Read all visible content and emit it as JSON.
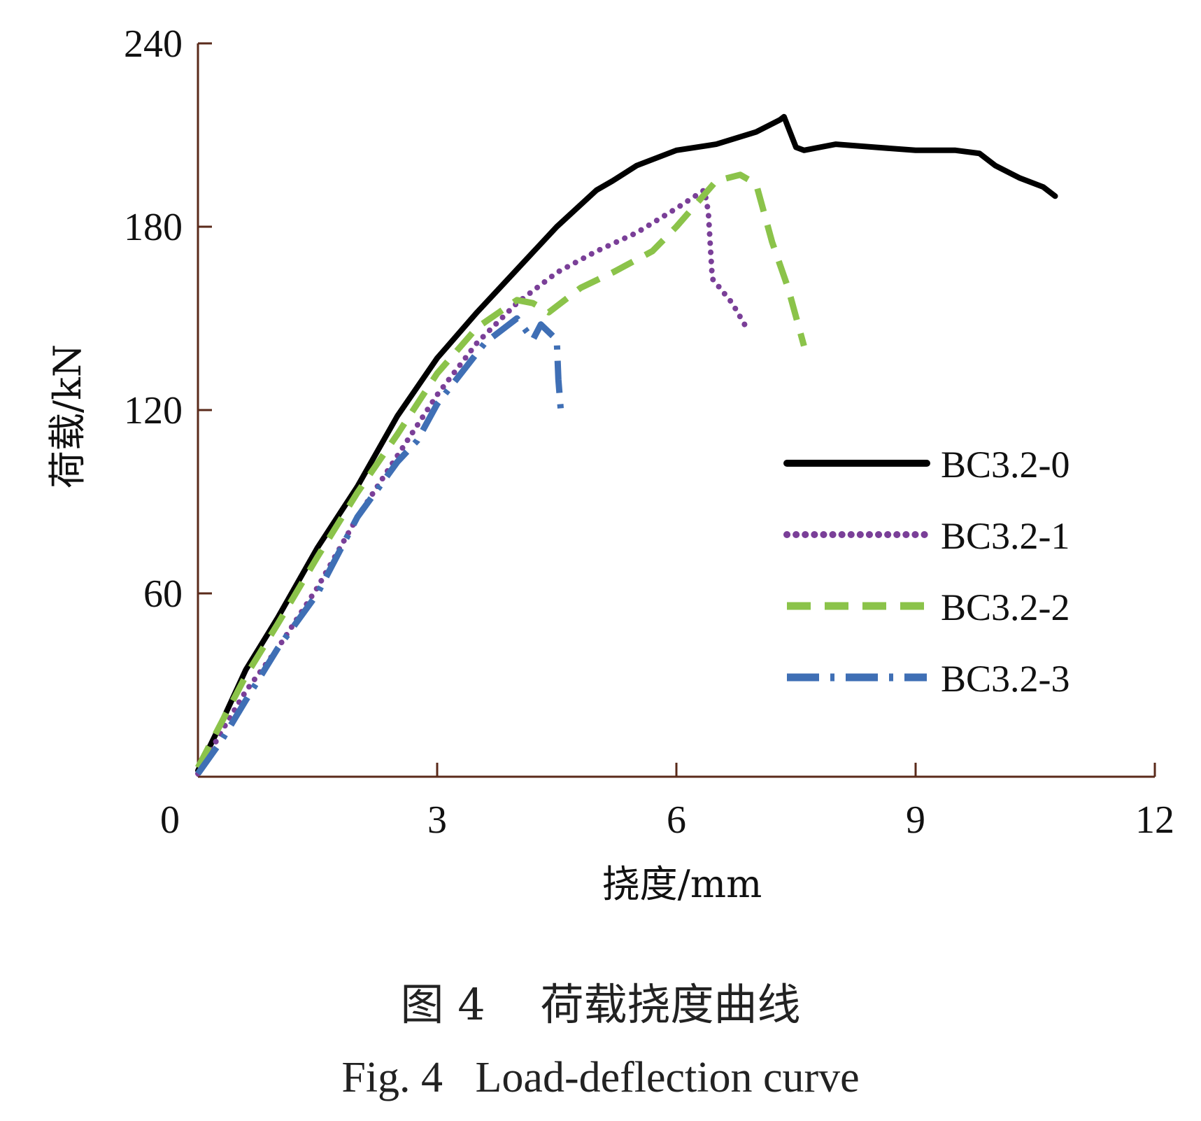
{
  "chart_data": {
    "type": "line",
    "xlabel": "挠度/mm",
    "ylabel": "荷载/kN",
    "xlim": [
      0,
      12
    ],
    "ylim": [
      0,
      240
    ],
    "x_ticks": [
      0,
      3,
      6,
      9,
      12
    ],
    "y_ticks": [
      60,
      120,
      180,
      240
    ],
    "grid": false,
    "legend_position": "right",
    "series": [
      {
        "name": "BC3.2-0",
        "color": "#000000",
        "style": "solid",
        "x": [
          0.0,
          0.3,
          0.6,
          1.0,
          1.5,
          2.0,
          2.5,
          3.0,
          3.1,
          3.5,
          4.0,
          4.5,
          5.0,
          5.2,
          5.5,
          6.0,
          6.5,
          7.0,
          7.3,
          7.35,
          7.5,
          7.6,
          8.0,
          8.5,
          9.0,
          9.5,
          9.8,
          10.0,
          10.3,
          10.6,
          10.75
        ],
        "y": [
          2,
          18,
          35,
          52,
          75,
          95,
          118,
          137,
          140,
          152,
          166,
          180,
          192,
          195,
          200,
          205,
          207,
          211,
          215,
          216,
          206,
          205,
          207,
          206,
          205,
          205,
          204,
          200,
          196,
          193,
          190
        ]
      },
      {
        "name": "BC3.2-1",
        "color": "#7a3f98",
        "style": "dotted",
        "x": [
          0.0,
          0.3,
          0.6,
          1.0,
          1.5,
          2.0,
          2.5,
          3.0,
          3.5,
          4.0,
          4.5,
          5.0,
          5.5,
          6.0,
          6.35,
          6.4,
          6.45,
          6.7,
          6.9
        ],
        "y": [
          1,
          15,
          28,
          42,
          62,
          85,
          105,
          125,
          142,
          155,
          165,
          172,
          178,
          186,
          192,
          185,
          163,
          155,
          146
        ]
      },
      {
        "name": "BC3.2-2",
        "color": "#8bc34a",
        "style": "dashed",
        "x": [
          0.0,
          0.3,
          0.6,
          1.0,
          1.5,
          2.0,
          2.5,
          3.0,
          3.5,
          4.0,
          4.2,
          4.4,
          4.8,
          5.2,
          5.7,
          6.0,
          6.5,
          6.8,
          7.0,
          7.2,
          7.4,
          7.6
        ],
        "y": [
          3,
          18,
          33,
          50,
          72,
          93,
          112,
          132,
          147,
          156,
          155,
          152,
          160,
          165,
          172,
          180,
          195,
          197,
          194,
          175,
          160,
          141
        ]
      },
      {
        "name": "BC3.2-3",
        "color": "#3f6fb5",
        "style": "dashdot",
        "x": [
          0.0,
          0.3,
          0.6,
          1.0,
          1.5,
          2.0,
          2.5,
          2.75,
          3.0,
          3.6,
          4.0,
          4.2,
          4.3,
          4.5,
          4.52,
          4.55
        ],
        "y": [
          1,
          12,
          25,
          42,
          60,
          85,
          103,
          110,
          122,
          142,
          150,
          143,
          148,
          143,
          130,
          120
        ]
      }
    ]
  },
  "caption": {
    "cn": "图 4    荷载挠度曲线",
    "en": "Fig. 4   Load-deflection curve"
  }
}
